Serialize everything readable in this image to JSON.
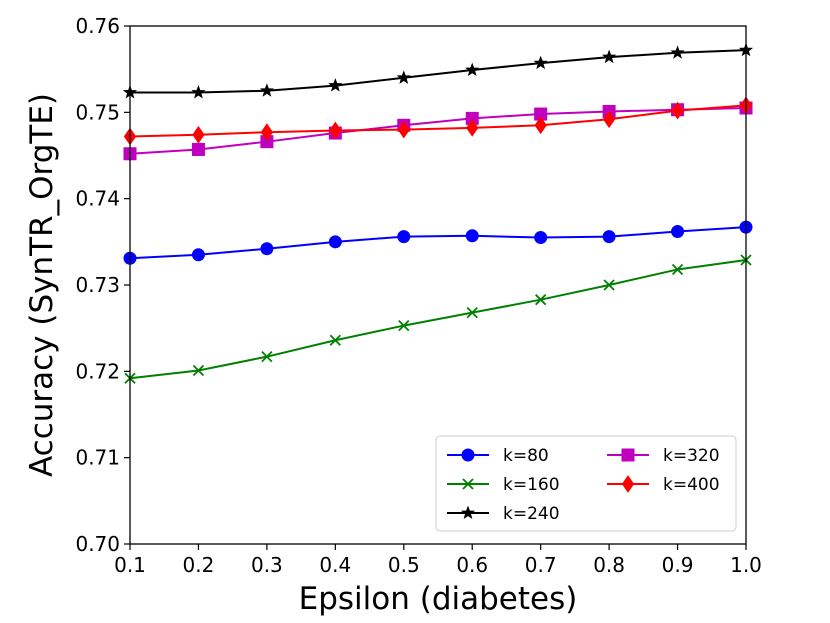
{
  "chart_data": {
    "type": "line",
    "title": "",
    "xlabel": "Epsilon (diabetes)",
    "ylabel": "Accuracy  (SynTR_OrgTE)",
    "x": [
      0.1,
      0.2,
      0.3,
      0.4,
      0.5,
      0.6,
      0.7,
      0.8,
      0.9,
      1.0
    ],
    "xlim": [
      0.1,
      1.0
    ],
    "ylim": [
      0.7,
      0.76
    ],
    "xticks": [
      "0.1",
      "0.2",
      "0.3",
      "0.4",
      "0.5",
      "0.6",
      "0.7",
      "0.8",
      "0.9",
      "1.0"
    ],
    "xtick_values": [
      0.1,
      0.2,
      0.3,
      0.4,
      0.5,
      0.6,
      0.7,
      0.8,
      0.9,
      1.0
    ],
    "yticks": [
      "0.70",
      "0.71",
      "0.72",
      "0.73",
      "0.74",
      "0.75",
      "0.76"
    ],
    "ytick_values": [
      0.7,
      0.71,
      0.72,
      0.73,
      0.74,
      0.75,
      0.76
    ],
    "grid": false,
    "legend_position": "bottom-right",
    "series": [
      {
        "name": "k=80",
        "color": "#0000ff",
        "marker": "circle",
        "values": [
          0.7331,
          0.7335,
          0.7342,
          0.735,
          0.7356,
          0.7357,
          0.7355,
          0.7356,
          0.7362,
          0.7367
        ]
      },
      {
        "name": "k=160",
        "color": "#008000",
        "marker": "x",
        "values": [
          0.7192,
          0.7201,
          0.7217,
          0.7236,
          0.7253,
          0.7268,
          0.7283,
          0.73,
          0.7318,
          0.7329
        ]
      },
      {
        "name": "k=240",
        "color": "#000000",
        "marker": "star",
        "values": [
          0.7523,
          0.7523,
          0.7525,
          0.7531,
          0.754,
          0.7549,
          0.7557,
          0.7564,
          0.7569,
          0.7572
        ]
      },
      {
        "name": "k=320",
        "color": "#bf00bf",
        "marker": "square",
        "values": [
          0.7452,
          0.7457,
          0.7466,
          0.7476,
          0.7485,
          0.7493,
          0.7498,
          0.7501,
          0.7503,
          0.7505
        ]
      },
      {
        "name": "k=400",
        "color": "#ff0000",
        "marker": "diamond",
        "values": [
          0.7472,
          0.7474,
          0.7477,
          0.7479,
          0.748,
          0.7482,
          0.7485,
          0.7492,
          0.7502,
          0.7508
        ]
      }
    ]
  }
}
